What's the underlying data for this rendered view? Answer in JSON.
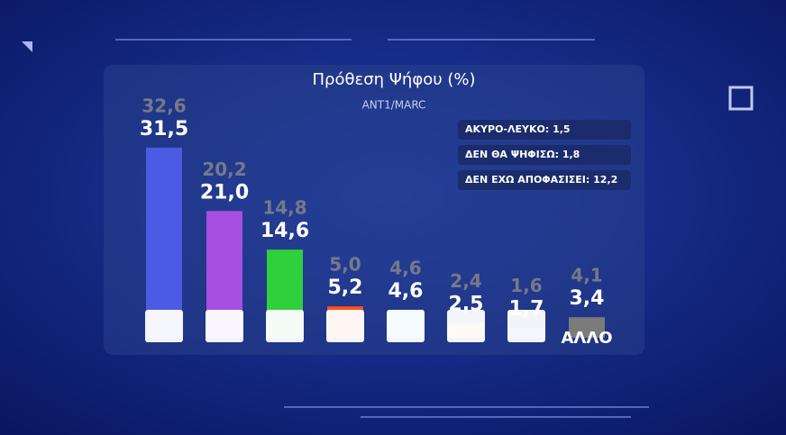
{
  "chart_data": {
    "type": "bar",
    "title": "Πρόθεση Ψήφου (%)",
    "subtitle": "ANT1/MARC",
    "categories": [
      null,
      null,
      null,
      null,
      null,
      null,
      null,
      "ΑΛΛΟ"
    ],
    "values": [
      31.5,
      21.0,
      14.6,
      5.2,
      4.6,
      2.5,
      1.7,
      3.4
    ],
    "value_labels": [
      "31,5",
      "21,0",
      "14,6",
      "5,2",
      "4,6",
      "2,5",
      "1,7",
      "3,4"
    ],
    "colors": [
      "#4b5be3",
      "#a54fe0",
      "#2fd03c",
      "#ff4d1f",
      "#3ec8ef",
      "#ff8c3f",
      "#3a3ec6",
      "#7b7b7b"
    ],
    "previous_values": [
      32.6,
      20.2,
      14.8,
      5.0,
      4.6,
      2.4,
      1.6,
      4.1
    ],
    "previous_value_labels": [
      "32,6",
      "20,2",
      "14,8",
      "5,0",
      "4,6",
      "2,4",
      "1,6",
      "4,1"
    ],
    "notes": [
      "ΑΚΥΡΟ-ΛΕΥΚΟ: 1,5",
      "ΔΕΝ ΘΑ ΨΗΦΙΣΩ: 1,8",
      "ΔΕΝ ΕΧΩ ΑΠΟΦΑΣΙΣΕΙ: 12,2"
    ]
  }
}
